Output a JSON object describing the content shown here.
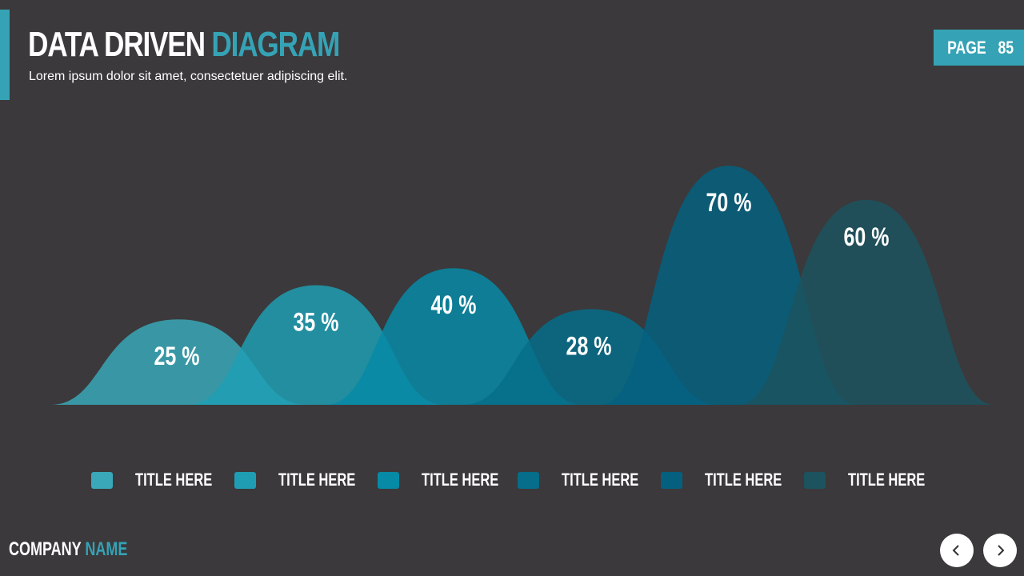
{
  "header": {
    "title_part1": "DATA DRIVEN",
    "title_part2": "DIAGRAM",
    "subtitle": "Lorem ipsum dolor sit amet, consectetuer adipiscing elit.",
    "page_label": "PAGE",
    "page_number": "85"
  },
  "footer": {
    "company_part1": "COMPANY",
    "company_part2": "NAME",
    "prev_icon": "chevron-left-icon",
    "next_icon": "chevron-right-icon"
  },
  "colors": {
    "accent": "#35a3b5",
    "background": "#3b393b"
  },
  "chart_data": {
    "type": "area",
    "title": "",
    "ylim": [
      0,
      100
    ],
    "series": [
      {
        "value": 25,
        "label": "25 %",
        "color": "#3aa8b8"
      },
      {
        "value": 35,
        "label": "35 %",
        "color": "#1f9db3"
      },
      {
        "value": 40,
        "label": "40 %",
        "color": "#078aa6"
      },
      {
        "value": 28,
        "label": "28 %",
        "color": "#066d8a"
      },
      {
        "value": 70,
        "label": "70 %",
        "color": "#05607f"
      },
      {
        "value": 60,
        "label": "60 %",
        "color": "#1c535f"
      }
    ],
    "legend": {
      "placement": "bottom",
      "items": [
        {
          "label": "TITLE HERE",
          "color": "#3aa8b8"
        },
        {
          "label": "TITLE HERE",
          "color": "#1f9db3"
        },
        {
          "label": "TITLE HERE",
          "color": "#078aa6"
        },
        {
          "label": "TITLE HERE",
          "color": "#066d8a"
        },
        {
          "label": "TITLE HERE",
          "color": "#05607f"
        },
        {
          "label": "TITLE HERE",
          "color": "#1c535f"
        }
      ]
    }
  }
}
